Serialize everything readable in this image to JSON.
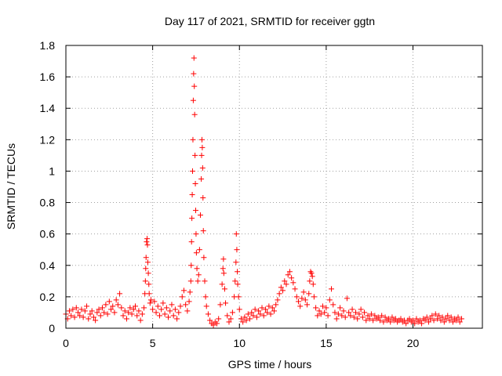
{
  "chart_data": {
    "type": "scatter",
    "title": "Day 117 of 2021, SRMTID for receiver ggtn",
    "xlabel": "GPS time / hours",
    "ylabel": "SRMTID / TECUs",
    "xlim": [
      0,
      24
    ],
    "ylim": [
      0,
      1.8
    ],
    "grid": true,
    "marker": "+",
    "marker_color": "#ff0000",
    "x_ticks": [
      {
        "value": 0,
        "label": "0"
      },
      {
        "value": 5,
        "label": "5"
      },
      {
        "value": 10,
        "label": "10"
      },
      {
        "value": 15,
        "label": "15"
      },
      {
        "value": 20,
        "label": "20"
      }
    ],
    "y_ticks": [
      {
        "value": 0,
        "label": "0"
      },
      {
        "value": 0.2,
        "label": "0.2"
      },
      {
        "value": 0.4,
        "label": "0.4"
      },
      {
        "value": 0.6,
        "label": "0.6"
      },
      {
        "value": 0.8,
        "label": "0.8"
      },
      {
        "value": 1.0,
        "label": "1"
      },
      {
        "value": 1.2,
        "label": "1.2"
      },
      {
        "value": 1.4,
        "label": "1.4"
      },
      {
        "value": 1.6,
        "label": "1.6"
      },
      {
        "value": 1.8,
        "label": "1.8"
      }
    ],
    "points": [
      [
        0.0,
        0.09
      ],
      [
        0.1,
        0.06
      ],
      [
        0.2,
        0.11
      ],
      [
        0.3,
        0.08
      ],
      [
        0.4,
        0.12
      ],
      [
        0.5,
        0.07
      ],
      [
        0.6,
        0.13
      ],
      [
        0.7,
        0.1
      ],
      [
        0.8,
        0.08
      ],
      [
        0.9,
        0.12
      ],
      [
        1.0,
        0.07
      ],
      [
        1.1,
        0.11
      ],
      [
        1.2,
        0.14
      ],
      [
        1.3,
        0.06
      ],
      [
        1.4,
        0.09
      ],
      [
        1.5,
        0.11
      ],
      [
        1.6,
        0.07
      ],
      [
        1.7,
        0.05
      ],
      [
        1.8,
        0.1
      ],
      [
        1.9,
        0.12
      ],
      [
        2.0,
        0.08
      ],
      [
        2.1,
        0.13
      ],
      [
        2.2,
        0.1
      ],
      [
        2.3,
        0.15
      ],
      [
        2.4,
        0.09
      ],
      [
        2.5,
        0.17
      ],
      [
        2.6,
        0.12
      ],
      [
        2.7,
        0.14
      ],
      [
        2.8,
        0.1
      ],
      [
        2.9,
        0.18
      ],
      [
        3.0,
        0.15
      ],
      [
        3.1,
        0.22
      ],
      [
        3.2,
        0.13
      ],
      [
        3.3,
        0.08
      ],
      [
        3.4,
        0.11
      ],
      [
        3.5,
        0.06
      ],
      [
        3.6,
        0.1
      ],
      [
        3.7,
        0.13
      ],
      [
        3.8,
        0.09
      ],
      [
        3.9,
        0.12
      ],
      [
        4.0,
        0.14
      ],
      [
        4.1,
        0.08
      ],
      [
        4.2,
        0.11
      ],
      [
        4.3,
        0.05
      ],
      [
        4.4,
        0.09
      ],
      [
        4.5,
        0.13
      ],
      [
        4.55,
        0.22
      ],
      [
        4.58,
        0.3
      ],
      [
        4.6,
        0.38
      ],
      [
        4.62,
        0.45
      ],
      [
        4.65,
        0.55
      ],
      [
        4.68,
        0.57
      ],
      [
        4.7,
        0.53
      ],
      [
        4.72,
        0.42
      ],
      [
        4.75,
        0.35
      ],
      [
        4.78,
        0.28
      ],
      [
        4.8,
        0.22
      ],
      [
        4.85,
        0.16
      ],
      [
        4.9,
        0.18
      ],
      [
        5.0,
        0.12
      ],
      [
        5.1,
        0.17
      ],
      [
        5.2,
        0.1
      ],
      [
        5.3,
        0.14
      ],
      [
        5.4,
        0.08
      ],
      [
        5.5,
        0.12
      ],
      [
        5.6,
        0.16
      ],
      [
        5.7,
        0.09
      ],
      [
        5.8,
        0.13
      ],
      [
        5.9,
        0.07
      ],
      [
        6.0,
        0.11
      ],
      [
        6.1,
        0.15
      ],
      [
        6.2,
        0.08
      ],
      [
        6.3,
        0.12
      ],
      [
        6.4,
        0.06
      ],
      [
        6.5,
        0.1
      ],
      [
        6.6,
        0.14
      ],
      [
        6.7,
        0.2
      ],
      [
        6.8,
        0.24
      ],
      [
        6.9,
        0.15
      ],
      [
        7.0,
        0.11
      ],
      [
        7.1,
        0.17
      ],
      [
        7.15,
        0.23
      ],
      [
        7.2,
        0.3
      ],
      [
        7.22,
        0.4
      ],
      [
        7.24,
        0.55
      ],
      [
        7.26,
        0.7
      ],
      [
        7.28,
        0.85
      ],
      [
        7.3,
        1.0
      ],
      [
        7.32,
        1.2
      ],
      [
        7.34,
        1.45
      ],
      [
        7.36,
        1.62
      ],
      [
        7.38,
        1.72
      ],
      [
        7.4,
        1.54
      ],
      [
        7.42,
        1.36
      ],
      [
        7.44,
        1.1
      ],
      [
        7.46,
        0.92
      ],
      [
        7.48,
        0.75
      ],
      [
        7.5,
        0.6
      ],
      [
        7.52,
        0.48
      ],
      [
        7.55,
        0.38
      ],
      [
        7.6,
        0.3
      ],
      [
        7.65,
        0.34
      ],
      [
        7.7,
        0.5
      ],
      [
        7.75,
        0.72
      ],
      [
        7.8,
        0.95
      ],
      [
        7.82,
        1.1
      ],
      [
        7.84,
        1.2
      ],
      [
        7.86,
        1.15
      ],
      [
        7.88,
        1.02
      ],
      [
        7.9,
        0.83
      ],
      [
        7.92,
        0.62
      ],
      [
        7.95,
        0.45
      ],
      [
        8.0,
        0.3
      ],
      [
        8.05,
        0.2
      ],
      [
        8.1,
        0.14
      ],
      [
        8.2,
        0.09
      ],
      [
        8.3,
        0.05
      ],
      [
        8.4,
        0.03
      ],
      [
        8.5,
        0.02
      ],
      [
        8.6,
        0.04
      ],
      [
        8.7,
        0.03
      ],
      [
        8.8,
        0.06
      ],
      [
        8.9,
        0.15
      ],
      [
        9.0,
        0.28
      ],
      [
        9.05,
        0.38
      ],
      [
        9.08,
        0.44
      ],
      [
        9.1,
        0.35
      ],
      [
        9.15,
        0.25
      ],
      [
        9.2,
        0.16
      ],
      [
        9.3,
        0.08
      ],
      [
        9.4,
        0.04
      ],
      [
        9.5,
        0.06
      ],
      [
        9.6,
        0.1
      ],
      [
        9.7,
        0.2
      ],
      [
        9.75,
        0.3
      ],
      [
        9.8,
        0.42
      ],
      [
        9.82,
        0.6
      ],
      [
        9.85,
        0.5
      ],
      [
        9.88,
        0.36
      ],
      [
        9.9,
        0.28
      ],
      [
        9.95,
        0.2
      ],
      [
        10.0,
        0.12
      ],
      [
        10.1,
        0.06
      ],
      [
        10.2,
        0.04
      ],
      [
        10.3,
        0.07
      ],
      [
        10.4,
        0.05
      ],
      [
        10.5,
        0.09
      ],
      [
        10.6,
        0.06
      ],
      [
        10.7,
        0.1
      ],
      [
        10.8,
        0.08
      ],
      [
        10.9,
        0.12
      ],
      [
        11.0,
        0.07
      ],
      [
        11.1,
        0.11
      ],
      [
        11.2,
        0.09
      ],
      [
        11.3,
        0.13
      ],
      [
        11.4,
        0.08
      ],
      [
        11.5,
        0.12
      ],
      [
        11.6,
        0.1
      ],
      [
        11.7,
        0.14
      ],
      [
        11.8,
        0.09
      ],
      [
        11.9,
        0.13
      ],
      [
        12.0,
        0.11
      ],
      [
        12.1,
        0.15
      ],
      [
        12.2,
        0.18
      ],
      [
        12.3,
        0.22
      ],
      [
        12.4,
        0.26
      ],
      [
        12.5,
        0.24
      ],
      [
        12.6,
        0.3
      ],
      [
        12.7,
        0.28
      ],
      [
        12.8,
        0.34
      ],
      [
        12.9,
        0.36
      ],
      [
        13.0,
        0.32
      ],
      [
        13.1,
        0.29
      ],
      [
        13.2,
        0.25
      ],
      [
        13.3,
        0.2
      ],
      [
        13.4,
        0.17
      ],
      [
        13.5,
        0.14
      ],
      [
        13.6,
        0.19
      ],
      [
        13.7,
        0.23
      ],
      [
        13.8,
        0.18
      ],
      [
        13.9,
        0.15
      ],
      [
        14.0,
        0.22
      ],
      [
        14.05,
        0.3
      ],
      [
        14.1,
        0.36
      ],
      [
        14.15,
        0.35
      ],
      [
        14.2,
        0.33
      ],
      [
        14.25,
        0.28
      ],
      [
        14.3,
        0.2
      ],
      [
        14.4,
        0.13
      ],
      [
        14.5,
        0.08
      ],
      [
        14.6,
        0.11
      ],
      [
        14.7,
        0.09
      ],
      [
        14.8,
        0.14
      ],
      [
        14.9,
        0.1
      ],
      [
        15.0,
        0.13
      ],
      [
        15.1,
        0.08
      ],
      [
        15.2,
        0.18
      ],
      [
        15.3,
        0.25
      ],
      [
        15.4,
        0.15
      ],
      [
        15.5,
        0.1
      ],
      [
        15.6,
        0.06
      ],
      [
        15.7,
        0.09
      ],
      [
        15.8,
        0.13
      ],
      [
        15.9,
        0.08
      ],
      [
        16.0,
        0.11
      ],
      [
        16.1,
        0.07
      ],
      [
        16.2,
        0.19
      ],
      [
        16.3,
        0.1
      ],
      [
        16.4,
        0.08
      ],
      [
        16.5,
        0.12
      ],
      [
        16.6,
        0.07
      ],
      [
        16.7,
        0.1
      ],
      [
        16.8,
        0.06
      ],
      [
        16.9,
        0.09
      ],
      [
        17.0,
        0.12
      ],
      [
        17.1,
        0.07
      ],
      [
        17.2,
        0.1
      ],
      [
        17.3,
        0.05
      ],
      [
        17.4,
        0.08
      ],
      [
        17.5,
        0.06
      ],
      [
        17.6,
        0.09
      ],
      [
        17.7,
        0.05
      ],
      [
        17.8,
        0.08
      ],
      [
        17.9,
        0.06
      ],
      [
        18.0,
        0.07
      ],
      [
        18.1,
        0.05
      ],
      [
        18.2,
        0.08
      ],
      [
        18.3,
        0.04
      ],
      [
        18.4,
        0.07
      ],
      [
        18.5,
        0.05
      ],
      [
        18.6,
        0.06
      ],
      [
        18.7,
        0.04
      ],
      [
        18.8,
        0.07
      ],
      [
        18.9,
        0.05
      ],
      [
        19.0,
        0.06
      ],
      [
        19.1,
        0.04
      ],
      [
        19.2,
        0.05
      ],
      [
        19.3,
        0.06
      ],
      [
        19.4,
        0.04
      ],
      [
        19.5,
        0.05
      ],
      [
        19.6,
        0.03
      ],
      [
        19.7,
        0.05
      ],
      [
        19.8,
        0.06
      ],
      [
        19.9,
        0.04
      ],
      [
        20.0,
        0.05
      ],
      [
        20.1,
        0.03
      ],
      [
        20.2,
        0.06
      ],
      [
        20.3,
        0.04
      ],
      [
        20.4,
        0.05
      ],
      [
        20.5,
        0.03
      ],
      [
        20.6,
        0.06
      ],
      [
        20.7,
        0.05
      ],
      [
        20.8,
        0.07
      ],
      [
        20.9,
        0.04
      ],
      [
        21.0,
        0.06
      ],
      [
        21.1,
        0.08
      ],
      [
        21.2,
        0.05
      ],
      [
        21.3,
        0.09
      ],
      [
        21.4,
        0.06
      ],
      [
        21.5,
        0.08
      ],
      [
        21.6,
        0.05
      ],
      [
        21.7,
        0.07
      ],
      [
        21.8,
        0.04
      ],
      [
        21.9,
        0.06
      ],
      [
        22.0,
        0.08
      ],
      [
        22.1,
        0.05
      ],
      [
        22.2,
        0.07
      ],
      [
        22.3,
        0.04
      ],
      [
        22.4,
        0.06
      ],
      [
        22.5,
        0.05
      ],
      [
        22.6,
        0.07
      ],
      [
        22.7,
        0.04
      ],
      [
        22.8,
        0.06
      ]
    ]
  }
}
